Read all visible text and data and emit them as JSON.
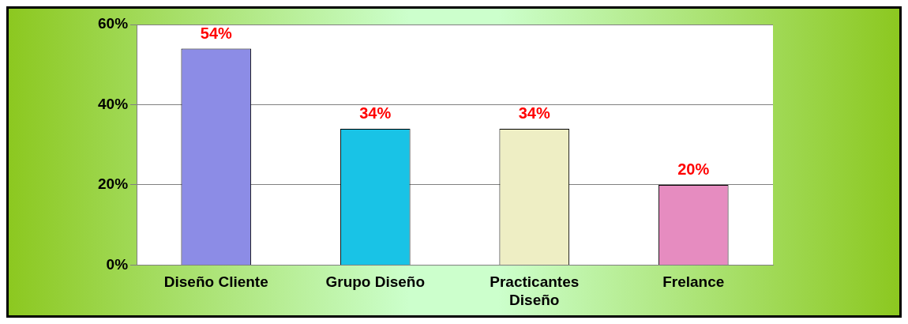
{
  "chart_data": {
    "type": "bar",
    "categories": [
      "Diseño Cliente",
      "Grupo Diseño",
      "Practicantes Diseño",
      "Frelance"
    ],
    "values": [
      54,
      34,
      34,
      20
    ],
    "colors": [
      "#8c8ce6",
      "#19c3e6",
      "#eeeec4",
      "#e68cc0"
    ],
    "value_labels": [
      "54%",
      "34%",
      "34%",
      "20%"
    ],
    "ylim": [
      0,
      60
    ],
    "yticks": [
      {
        "value": 0,
        "label": "0%"
      },
      {
        "value": 20,
        "label": "20%"
      },
      {
        "value": 40,
        "label": "40%"
      },
      {
        "value": 60,
        "label": "60%"
      }
    ],
    "grid": "y"
  }
}
